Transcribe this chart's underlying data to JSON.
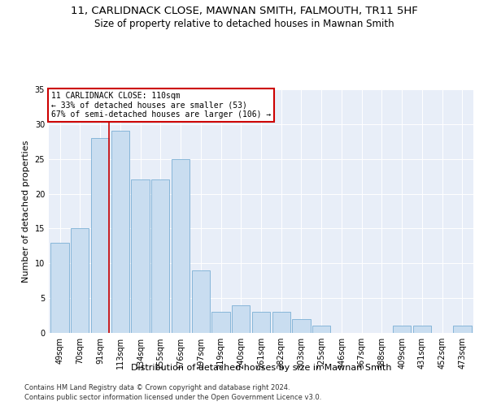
{
  "title": "11, CARLIDNACK CLOSE, MAWNAN SMITH, FALMOUTH, TR11 5HF",
  "subtitle": "Size of property relative to detached houses in Mawnan Smith",
  "xlabel": "Distribution of detached houses by size in Mawnan Smith",
  "ylabel": "Number of detached properties",
  "categories": [
    "49sqm",
    "70sqm",
    "91sqm",
    "113sqm",
    "134sqm",
    "155sqm",
    "176sqm",
    "197sqm",
    "219sqm",
    "240sqm",
    "261sqm",
    "282sqm",
    "303sqm",
    "325sqm",
    "346sqm",
    "367sqm",
    "388sqm",
    "409sqm",
    "431sqm",
    "452sqm",
    "473sqm"
  ],
  "values": [
    13,
    15,
    28,
    29,
    22,
    22,
    25,
    9,
    3,
    4,
    3,
    3,
    2,
    1,
    0,
    0,
    0,
    1,
    1,
    0,
    1
  ],
  "bar_color": "#c9ddf0",
  "bar_edge_color": "#7aafd4",
  "annotation_text_line1": "11 CARLIDNACK CLOSE: 110sqm",
  "annotation_text_line2": "← 33% of detached houses are smaller (53)",
  "annotation_text_line3": "67% of semi-detached houses are larger (106) →",
  "annotation_box_color": "#ffffff",
  "annotation_box_edge": "#cc0000",
  "vline_color": "#cc0000",
  "ylim": [
    0,
    35
  ],
  "yticks": [
    0,
    5,
    10,
    15,
    20,
    25,
    30,
    35
  ],
  "background_color": "#e8eef8",
  "footer_line1": "Contains HM Land Registry data © Crown copyright and database right 2024.",
  "footer_line2": "Contains public sector information licensed under the Open Government Licence v3.0.",
  "title_fontsize": 9.5,
  "subtitle_fontsize": 8.5,
  "axis_label_fontsize": 8,
  "tick_fontsize": 7,
  "annotation_fontsize": 7,
  "footer_fontsize": 6
}
